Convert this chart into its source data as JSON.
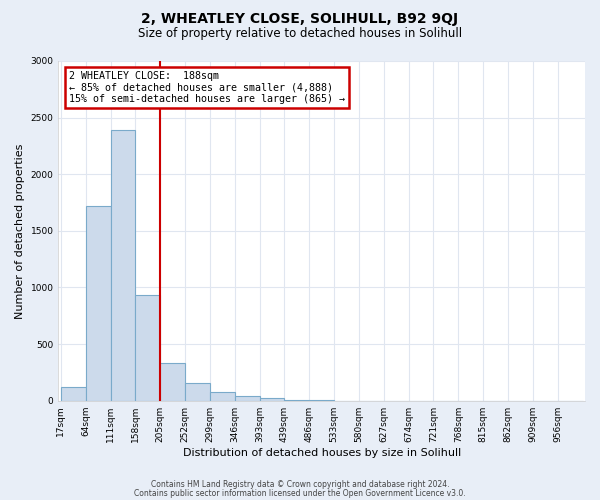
{
  "title": "2, WHEATLEY CLOSE, SOLIHULL, B92 9QJ",
  "subtitle": "Size of property relative to detached houses in Solihull",
  "xlabel": "Distribution of detached houses by size in Solihull",
  "ylabel": "Number of detached properties",
  "bin_labels": [
    "17sqm",
    "64sqm",
    "111sqm",
    "158sqm",
    "205sqm",
    "252sqm",
    "299sqm",
    "346sqm",
    "393sqm",
    "439sqm",
    "486sqm",
    "533sqm",
    "580sqm",
    "627sqm",
    "674sqm",
    "721sqm",
    "768sqm",
    "815sqm",
    "862sqm",
    "909sqm",
    "956sqm"
  ],
  "bar_values": [
    120,
    1720,
    2390,
    930,
    335,
    155,
    80,
    45,
    28,
    5,
    4,
    0,
    0,
    0,
    0,
    0,
    0,
    0,
    0,
    0,
    0
  ],
  "bar_color": "#ccdaeb",
  "bar_edge_color": "#7aaaca",
  "vline_color": "#cc0000",
  "annotation_text": "2 WHEATLEY CLOSE:  188sqm\n← 85% of detached houses are smaller (4,888)\n15% of semi-detached houses are larger (865) →",
  "annotation_box_color": "#ffffff",
  "annotation_border_color": "#cc0000",
  "ylim": [
    0,
    3000
  ],
  "yticks": [
    0,
    500,
    1000,
    1500,
    2000,
    2500,
    3000
  ],
  "footer_line1": "Contains HM Land Registry data © Crown copyright and database right 2024.",
  "footer_line2": "Contains public sector information licensed under the Open Government Licence v3.0.",
  "fig_background_color": "#e8eef7",
  "plot_background_color": "#ffffff",
  "grid_color": "#e0e6f0",
  "bin_width": 47,
  "vline_x_bin": 4
}
